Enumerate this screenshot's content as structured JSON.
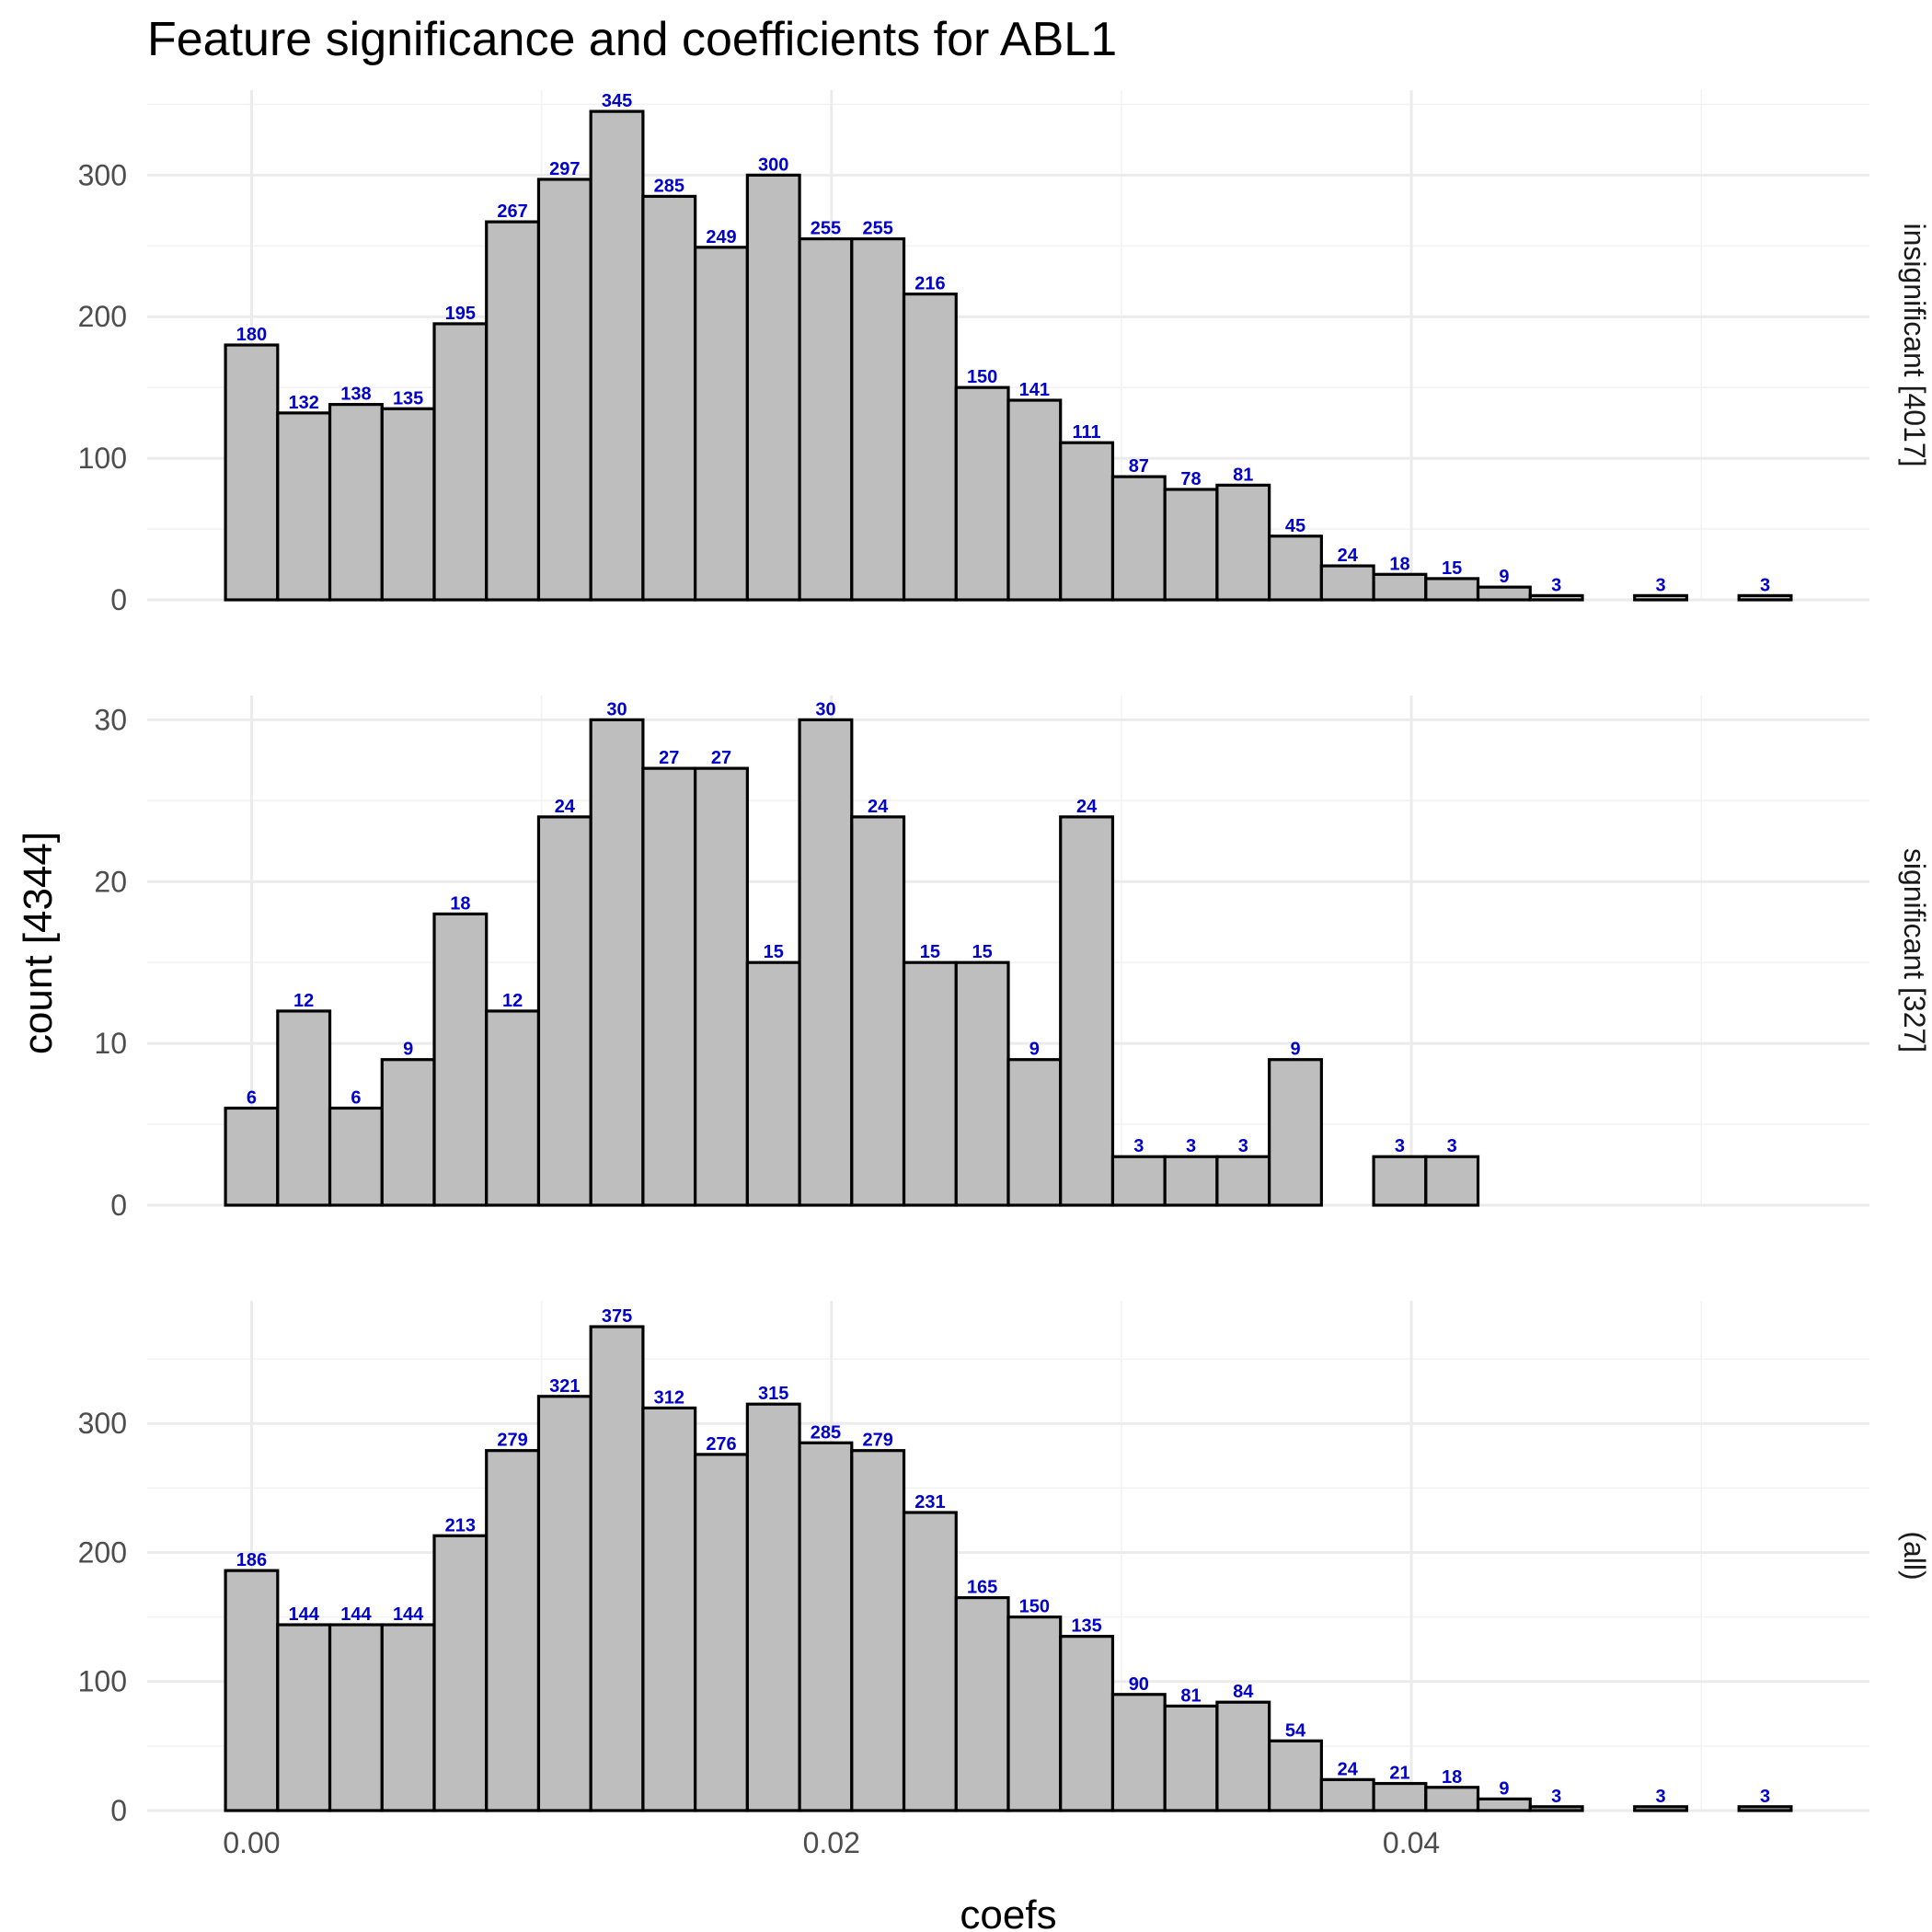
{
  "chart_data": {
    "type": "bar",
    "title": "Feature significance and coefficients for ABL1",
    "xlabel": "coefs",
    "ylabel": "count [4344]",
    "x_ticks": [
      0.0,
      0.02,
      0.04
    ],
    "x_tick_labels": [
      "0.00",
      "0.02",
      "0.04"
    ],
    "xlim": [
      -0.0036,
      0.0558
    ],
    "bin_start": -0.0009,
    "bin_width": 0.0018,
    "grid": true,
    "panels": [
      {
        "name": "insignificant [4017]",
        "ylim": [
          0,
          360
        ],
        "y_ticks": [
          0,
          100,
          200,
          300
        ],
        "y_tick_labels": [
          "0",
          "100",
          "200",
          "300"
        ],
        "values": [
          180,
          132,
          138,
          135,
          195,
          267,
          297,
          345,
          285,
          249,
          300,
          255,
          255,
          216,
          150,
          141,
          111,
          87,
          78,
          81,
          45,
          24,
          18,
          15,
          9,
          3,
          0,
          3,
          0,
          3
        ],
        "labels": [
          "180",
          "132",
          "138",
          "135",
          "195",
          "267",
          "297",
          "345",
          "285",
          "249",
          "300",
          "255",
          "255",
          "216",
          "150",
          "141",
          "111",
          "87",
          "78",
          "81",
          "45",
          "24",
          "18",
          "15",
          "9",
          "3",
          "",
          "3",
          "",
          "3"
        ]
      },
      {
        "name": "significant [327]",
        "ylim": [
          0,
          31.5
        ],
        "y_ticks": [
          0,
          10,
          20,
          30
        ],
        "y_tick_labels": [
          "0",
          "10",
          "20",
          "30"
        ],
        "values": [
          6,
          12,
          6,
          9,
          18,
          12,
          24,
          30,
          27,
          27,
          15,
          30,
          24,
          15,
          15,
          9,
          24,
          3,
          3,
          3,
          9,
          0,
          3,
          3,
          0,
          0,
          0,
          0,
          0,
          0
        ],
        "labels": [
          "6",
          "12",
          "6",
          "9",
          "18",
          "12",
          "24",
          "30",
          "27",
          "27",
          "15",
          "30",
          "24",
          "15",
          "15",
          "9",
          "24",
          "3",
          "3",
          "3",
          "9",
          "",
          "3",
          "3",
          "",
          "",
          "",
          "",
          "",
          ""
        ]
      },
      {
        "name": "(all)",
        "ylim": [
          0,
          395
        ],
        "y_ticks": [
          0,
          100,
          200,
          300
        ],
        "y_tick_labels": [
          "0",
          "100",
          "200",
          "300"
        ],
        "values": [
          186,
          144,
          144,
          144,
          213,
          279,
          321,
          375,
          312,
          276,
          315,
          285,
          279,
          231,
          165,
          150,
          135,
          90,
          81,
          84,
          54,
          24,
          21,
          18,
          9,
          3,
          0,
          3,
          0,
          3
        ],
        "labels": [
          "186",
          "144",
          "144",
          "144",
          "213",
          "279",
          "321",
          "375",
          "312",
          "276",
          "315",
          "285",
          "279",
          "231",
          "165",
          "150",
          "135",
          "90",
          "81",
          "84",
          "54",
          "24",
          "21",
          "18",
          "9",
          "3",
          "",
          "3",
          "",
          "3"
        ]
      }
    ]
  }
}
